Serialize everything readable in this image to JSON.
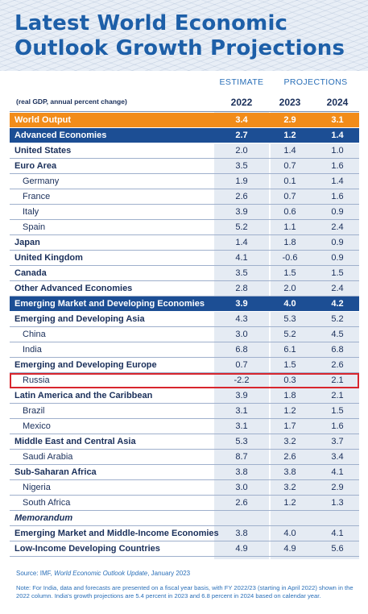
{
  "title": "Latest World Economic Outlook Growth Projections",
  "chart_data": {
    "type": "table",
    "title": "Latest World Economic Outlook Growth Projections",
    "column_groups": [
      "ESTIMATE",
      "PROJECTIONS"
    ],
    "units": "(real GDP, annual percent change)",
    "columns": [
      "2022",
      "2023",
      "2024"
    ],
    "rows": [
      {
        "label": "World Output",
        "values": [
          "3.4",
          "2.9",
          "3.1"
        ],
        "style": "orange"
      },
      {
        "label": "Advanced Economies",
        "values": [
          "2.7",
          "1.2",
          "1.4"
        ],
        "style": "navy"
      },
      {
        "label": "United States",
        "values": [
          "2.0",
          "1.4",
          "1.0"
        ],
        "style": "bold"
      },
      {
        "label": "Euro Area",
        "values": [
          "3.5",
          "0.7",
          "1.6"
        ],
        "style": "bold"
      },
      {
        "label": "Germany",
        "values": [
          "1.9",
          "0.1",
          "1.4"
        ],
        "style": "indent"
      },
      {
        "label": "France",
        "values": [
          "2.6",
          "0.7",
          "1.6"
        ],
        "style": "indent"
      },
      {
        "label": "Italy",
        "values": [
          "3.9",
          "0.6",
          "0.9"
        ],
        "style": "indent"
      },
      {
        "label": "Spain",
        "values": [
          "5.2",
          "1.1",
          "2.4"
        ],
        "style": "indent"
      },
      {
        "label": "Japan",
        "values": [
          "1.4",
          "1.8",
          "0.9"
        ],
        "style": "bold"
      },
      {
        "label": "United Kingdom",
        "values": [
          "4.1",
          "-0.6",
          "0.9"
        ],
        "style": "bold"
      },
      {
        "label": "Canada",
        "values": [
          "3.5",
          "1.5",
          "1.5"
        ],
        "style": "bold"
      },
      {
        "label": "Other Advanced Economies",
        "values": [
          "2.8",
          "2.0",
          "2.4"
        ],
        "style": "bold"
      },
      {
        "label": "Emerging Market and Developing Economies",
        "values": [
          "3.9",
          "4.0",
          "4.2"
        ],
        "style": "navy"
      },
      {
        "label": "Emerging and Developing Asia",
        "values": [
          "4.3",
          "5.3",
          "5.2"
        ],
        "style": "bold"
      },
      {
        "label": "China",
        "values": [
          "3.0",
          "5.2",
          "4.5"
        ],
        "style": "indent"
      },
      {
        "label": "India",
        "values": [
          "6.8",
          "6.1",
          "6.8"
        ],
        "style": "indent"
      },
      {
        "label": "Emerging and Developing Europe",
        "values": [
          "0.7",
          "1.5",
          "2.6"
        ],
        "style": "bold"
      },
      {
        "label": "Russia",
        "values": [
          "-2.2",
          "0.3",
          "2.1"
        ],
        "style": "indent",
        "highlight": true
      },
      {
        "label": "Latin America and the Caribbean",
        "values": [
          "3.9",
          "1.8",
          "2.1"
        ],
        "style": "bold"
      },
      {
        "label": "Brazil",
        "values": [
          "3.1",
          "1.2",
          "1.5"
        ],
        "style": "indent"
      },
      {
        "label": "Mexico",
        "values": [
          "3.1",
          "1.7",
          "1.6"
        ],
        "style": "indent"
      },
      {
        "label": "Middle East and Central Asia",
        "values": [
          "5.3",
          "3.2",
          "3.7"
        ],
        "style": "bold"
      },
      {
        "label": "Saudi Arabia",
        "values": [
          "8.7",
          "2.6",
          "3.4"
        ],
        "style": "indent"
      },
      {
        "label": "Sub-Saharan Africa",
        "values": [
          "3.8",
          "3.8",
          "4.1"
        ],
        "style": "bold"
      },
      {
        "label": "Nigeria",
        "values": [
          "3.0",
          "3.2",
          "2.9"
        ],
        "style": "indent"
      },
      {
        "label": "South Africa",
        "values": [
          "2.6",
          "1.2",
          "1.3"
        ],
        "style": "indent"
      },
      {
        "label": "Memorandum",
        "values": [
          "",
          "",
          ""
        ],
        "style": "italic"
      },
      {
        "label": "Emerging Market and Middle-Income Economies",
        "values": [
          "3.8",
          "4.0",
          "4.1"
        ],
        "style": "bold"
      },
      {
        "label": "Low-Income Developing Countries",
        "values": [
          "4.9",
          "4.9",
          "5.6"
        ],
        "style": "bold"
      }
    ],
    "highlight_color": "#d8262e",
    "accent_colors": {
      "orange": "#f28c1a",
      "navy": "#1c4e94",
      "title": "#1d5fa8"
    }
  },
  "footer": {
    "source_prefix": "Source: IMF,",
    "source_title": "World Economic Outlook Update",
    "source_date": ", January 2023",
    "note": "Note: For India, data and forecasts are presented on a fiscal year basis, with FY 2022/23 (starting in April 2022) shown in the 2022 column. India's growth projections are 5.4 percent in 2023 and 6.8 percent in 2024 based on calendar year."
  }
}
